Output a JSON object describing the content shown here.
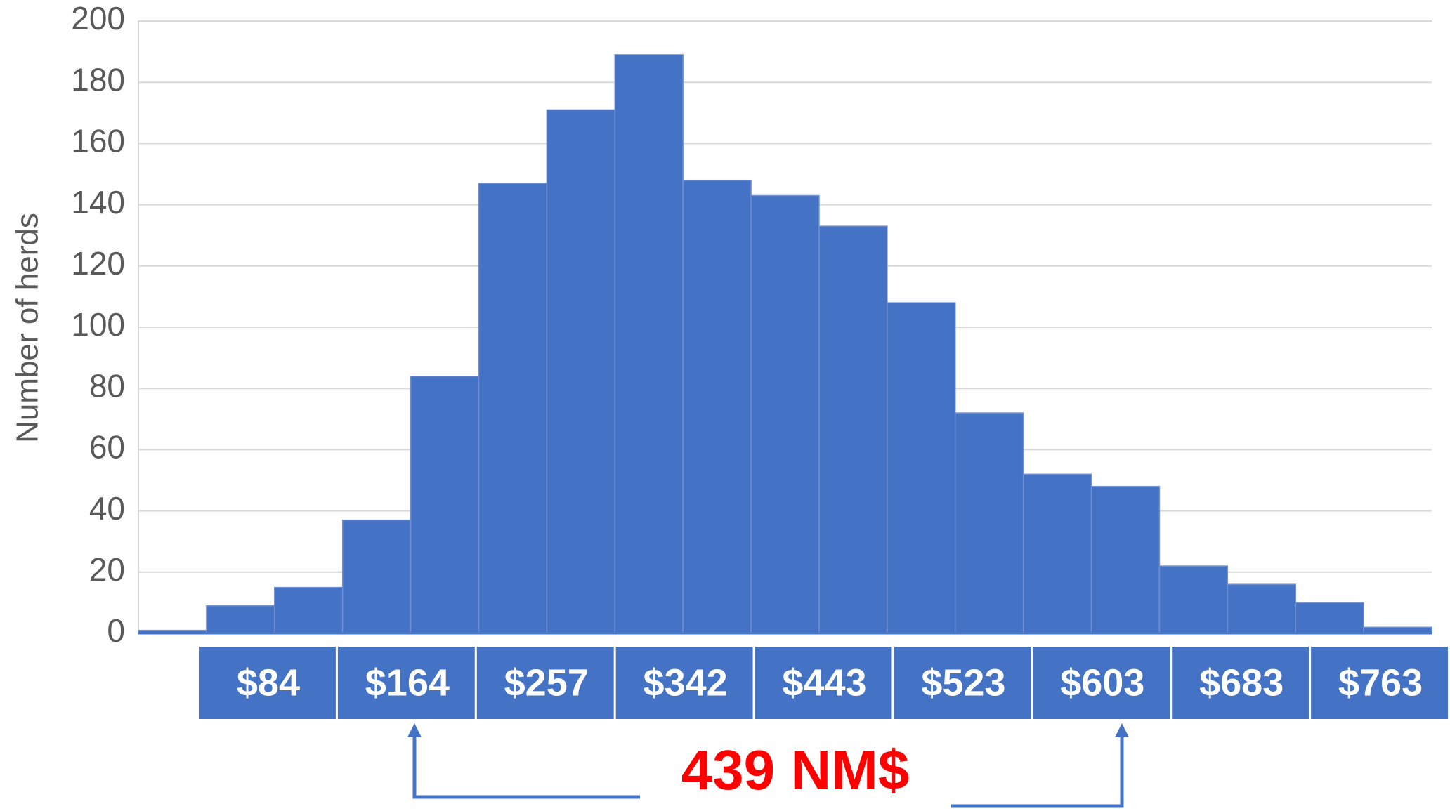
{
  "chart_data": {
    "type": "bar",
    "categories": [
      null,
      null,
      null,
      null,
      null,
      null,
      null,
      null,
      null,
      null,
      null,
      null,
      null,
      null,
      null,
      null,
      null,
      null,
      null
    ],
    "values": [
      1,
      9,
      15,
      37,
      84,
      147,
      171,
      189,
      148,
      143,
      133,
      108,
      72,
      52,
      48,
      22,
      16,
      10,
      2
    ],
    "color": "#4472c4",
    "y_label": "Number of herds",
    "ylim": [
      0,
      200
    ],
    "yticks": [
      0,
      20,
      40,
      60,
      80,
      100,
      120,
      140,
      160,
      180,
      200
    ],
    "grid": true,
    "bin_labels": [
      "$84",
      "$164",
      "$257",
      "$342",
      "$443",
      "$523",
      "$603",
      "$683",
      "$763"
    ],
    "annotation": "439 NM$"
  }
}
